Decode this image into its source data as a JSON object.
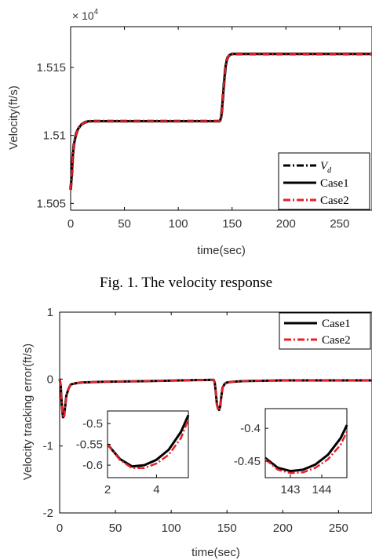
{
  "figure1": {
    "caption": "Fig. 1. The velocity response",
    "xlabel": "time(sec)",
    "ylabel": "Velocity(ft/s)",
    "exponent": "× 10",
    "exponent_power": "4",
    "x_ticks": [
      "0",
      "50",
      "100",
      "150",
      "200",
      "250"
    ],
    "y_ticks": [
      "1.505",
      "1.51",
      "1.515"
    ],
    "legend": [
      "V",
      "Case1",
      "Case2"
    ],
    "legend_vd_sub": "d"
  },
  "figure2": {
    "xlabel": "time(sec)",
    "ylabel": "Velocity tracking error(ft/s)",
    "x_ticks": [
      "0",
      "50",
      "100",
      "150",
      "200",
      "250"
    ],
    "y_ticks": [
      "1",
      "0",
      "-1",
      "-2"
    ],
    "legend": [
      "Case1",
      "Case2"
    ],
    "inset1": {
      "x_ticks": [
        "2",
        "4"
      ],
      "y_ticks": [
        "-0.5",
        "-0.55",
        "-0.6"
      ]
    },
    "inset2": {
      "x_ticks": [
        "143",
        "144"
      ],
      "y_ticks": [
        "-0.4",
        "-0.45"
      ]
    }
  },
  "colors": {
    "case1": "#000000",
    "case2": "#e8202a",
    "vd": "#000000"
  },
  "chart_data": [
    {
      "type": "line",
      "xlabel": "time(sec)",
      "ylabel": "Velocity(ft/s)",
      "xlim": [
        0,
        280
      ],
      "ylim": [
        15045,
        15180
      ],
      "y_scale_note": "× 10^4",
      "legend_placement": "bottom-right",
      "series": [
        {
          "name": "Vd",
          "style": "dash-dot",
          "x": [
            0,
            1,
            2,
            3,
            5,
            7,
            10,
            13,
            16,
            20,
            25,
            40,
            80,
            138,
            139,
            140,
            141,
            142,
            143,
            144,
            145,
            146,
            148,
            150,
            155,
            160,
            200,
            250,
            280
          ],
          "y": [
            15060,
            15070.5,
            15084.5,
            15093,
            15101,
            15105,
            15108,
            15109.5,
            15110.3,
            15110.5,
            15110.5,
            15110.5,
            15110.5,
            15110.5,
            15111,
            15114,
            15123,
            15133,
            15143,
            15151,
            15155,
            15157.5,
            15159.3,
            15160,
            15160,
            15160,
            15160,
            15160,
            15160
          ]
        },
        {
          "name": "Case1",
          "style": "solid",
          "x": [
            0,
            1,
            2,
            3,
            5,
            7,
            10,
            13,
            16,
            20,
            25,
            40,
            80,
            138,
            139,
            140,
            141,
            142,
            143,
            144,
            145,
            146,
            148,
            150,
            155,
            160,
            200,
            250,
            280
          ],
          "y": [
            15060,
            15070.5,
            15084.5,
            15093,
            15101,
            15105,
            15108,
            15109.5,
            15110.3,
            15110.5,
            15110.5,
            15110.5,
            15110.5,
            15110.5,
            15111,
            15114,
            15123,
            15133,
            15143,
            15151,
            15155,
            15157.5,
            15159.3,
            15160,
            15160,
            15160,
            15160,
            15160,
            15160
          ]
        },
        {
          "name": "Case2",
          "style": "dash-dot",
          "x": [
            0,
            1,
            2,
            3,
            5,
            7,
            10,
            13,
            16,
            20,
            25,
            40,
            80,
            138,
            139,
            140,
            141,
            142,
            143,
            144,
            145,
            146,
            148,
            150,
            155,
            160,
            200,
            250,
            280
          ],
          "y": [
            15060,
            15070.5,
            15084.5,
            15093,
            15101,
            15105,
            15108,
            15109.5,
            15110.3,
            15110.5,
            15110.5,
            15110.5,
            15110.5,
            15110.5,
            15111,
            15114,
            15123,
            15133,
            15143,
            15151,
            15155,
            15157.5,
            15159.3,
            15160,
            15160,
            15160,
            15160,
            15160,
            15160
          ]
        }
      ]
    },
    {
      "type": "line",
      "xlabel": "time(sec)",
      "ylabel": "Velocity tracking error(ft/s)",
      "xlim": [
        0,
        280
      ],
      "ylim": [
        -2,
        1
      ],
      "legend_placement": "top-right",
      "series": [
        {
          "name": "Case1",
          "style": "solid",
          "x": [
            0,
            1,
            2,
            3,
            4,
            5,
            6,
            8,
            10,
            15,
            20,
            40,
            80,
            138,
            139,
            140,
            141,
            142,
            143,
            144,
            145,
            146,
            148,
            150,
            155,
            165,
            200,
            250,
            280
          ],
          "y": [
            0,
            -0.1,
            -0.4,
            -0.57,
            -0.55,
            -0.4,
            -0.25,
            -0.14,
            -0.08,
            -0.06,
            -0.05,
            -0.04,
            -0.03,
            -0.01,
            -0.05,
            -0.2,
            -0.38,
            -0.44,
            -0.46,
            -0.4,
            -0.25,
            -0.13,
            -0.07,
            -0.05,
            -0.04,
            -0.03,
            -0.02,
            -0.02,
            -0.02
          ]
        },
        {
          "name": "Case2",
          "style": "dash-dot",
          "x": [
            0,
            1,
            2,
            3,
            4,
            5,
            6,
            8,
            10,
            15,
            20,
            40,
            80,
            138,
            139,
            140,
            141,
            142,
            143,
            144,
            145,
            146,
            148,
            150,
            155,
            165,
            200,
            250,
            280
          ],
          "y": [
            0,
            -0.1,
            -0.41,
            -0.58,
            -0.56,
            -0.41,
            -0.26,
            -0.14,
            -0.08,
            -0.06,
            -0.05,
            -0.04,
            -0.03,
            -0.01,
            -0.05,
            -0.21,
            -0.39,
            -0.45,
            -0.47,
            -0.41,
            -0.25,
            -0.13,
            -0.07,
            -0.05,
            -0.04,
            -0.03,
            -0.02,
            -0.02,
            -0.02
          ]
        }
      ],
      "insets": [
        {
          "xlim": [
            2,
            5.3
          ],
          "ylim": [
            -0.63,
            -0.47
          ],
          "series": [
            {
              "name": "Case1",
              "x": [
                2,
                2.5,
                3,
                3.5,
                4,
                4.5,
                5,
                5.3
              ],
              "y": [
                -0.55,
                -0.585,
                -0.603,
                -0.6,
                -0.587,
                -0.563,
                -0.52,
                -0.48
              ]
            },
            {
              "name": "Case2",
              "x": [
                2,
                2.5,
                3,
                3.5,
                4,
                4.5,
                5,
                5.3
              ],
              "y": [
                -0.55,
                -0.587,
                -0.607,
                -0.607,
                -0.596,
                -0.575,
                -0.535,
                -0.49
              ]
            }
          ]
        },
        {
          "xlim": [
            142.2,
            144.8
          ],
          "ylim": [
            -0.475,
            -0.37
          ],
          "series": [
            {
              "name": "Case1",
              "x": [
                142.2,
                142.6,
                143,
                143.4,
                143.8,
                144.2,
                144.6,
                144.8
              ],
              "y": [
                -0.445,
                -0.46,
                -0.465,
                -0.463,
                -0.455,
                -0.44,
                -0.415,
                -0.395
              ]
            },
            {
              "name": "Case2",
              "x": [
                142.2,
                142.6,
                143,
                143.4,
                143.8,
                144.2,
                144.6,
                144.8
              ],
              "y": [
                -0.447,
                -0.463,
                -0.468,
                -0.467,
                -0.46,
                -0.447,
                -0.425,
                -0.405
              ]
            }
          ]
        }
      ]
    }
  ]
}
